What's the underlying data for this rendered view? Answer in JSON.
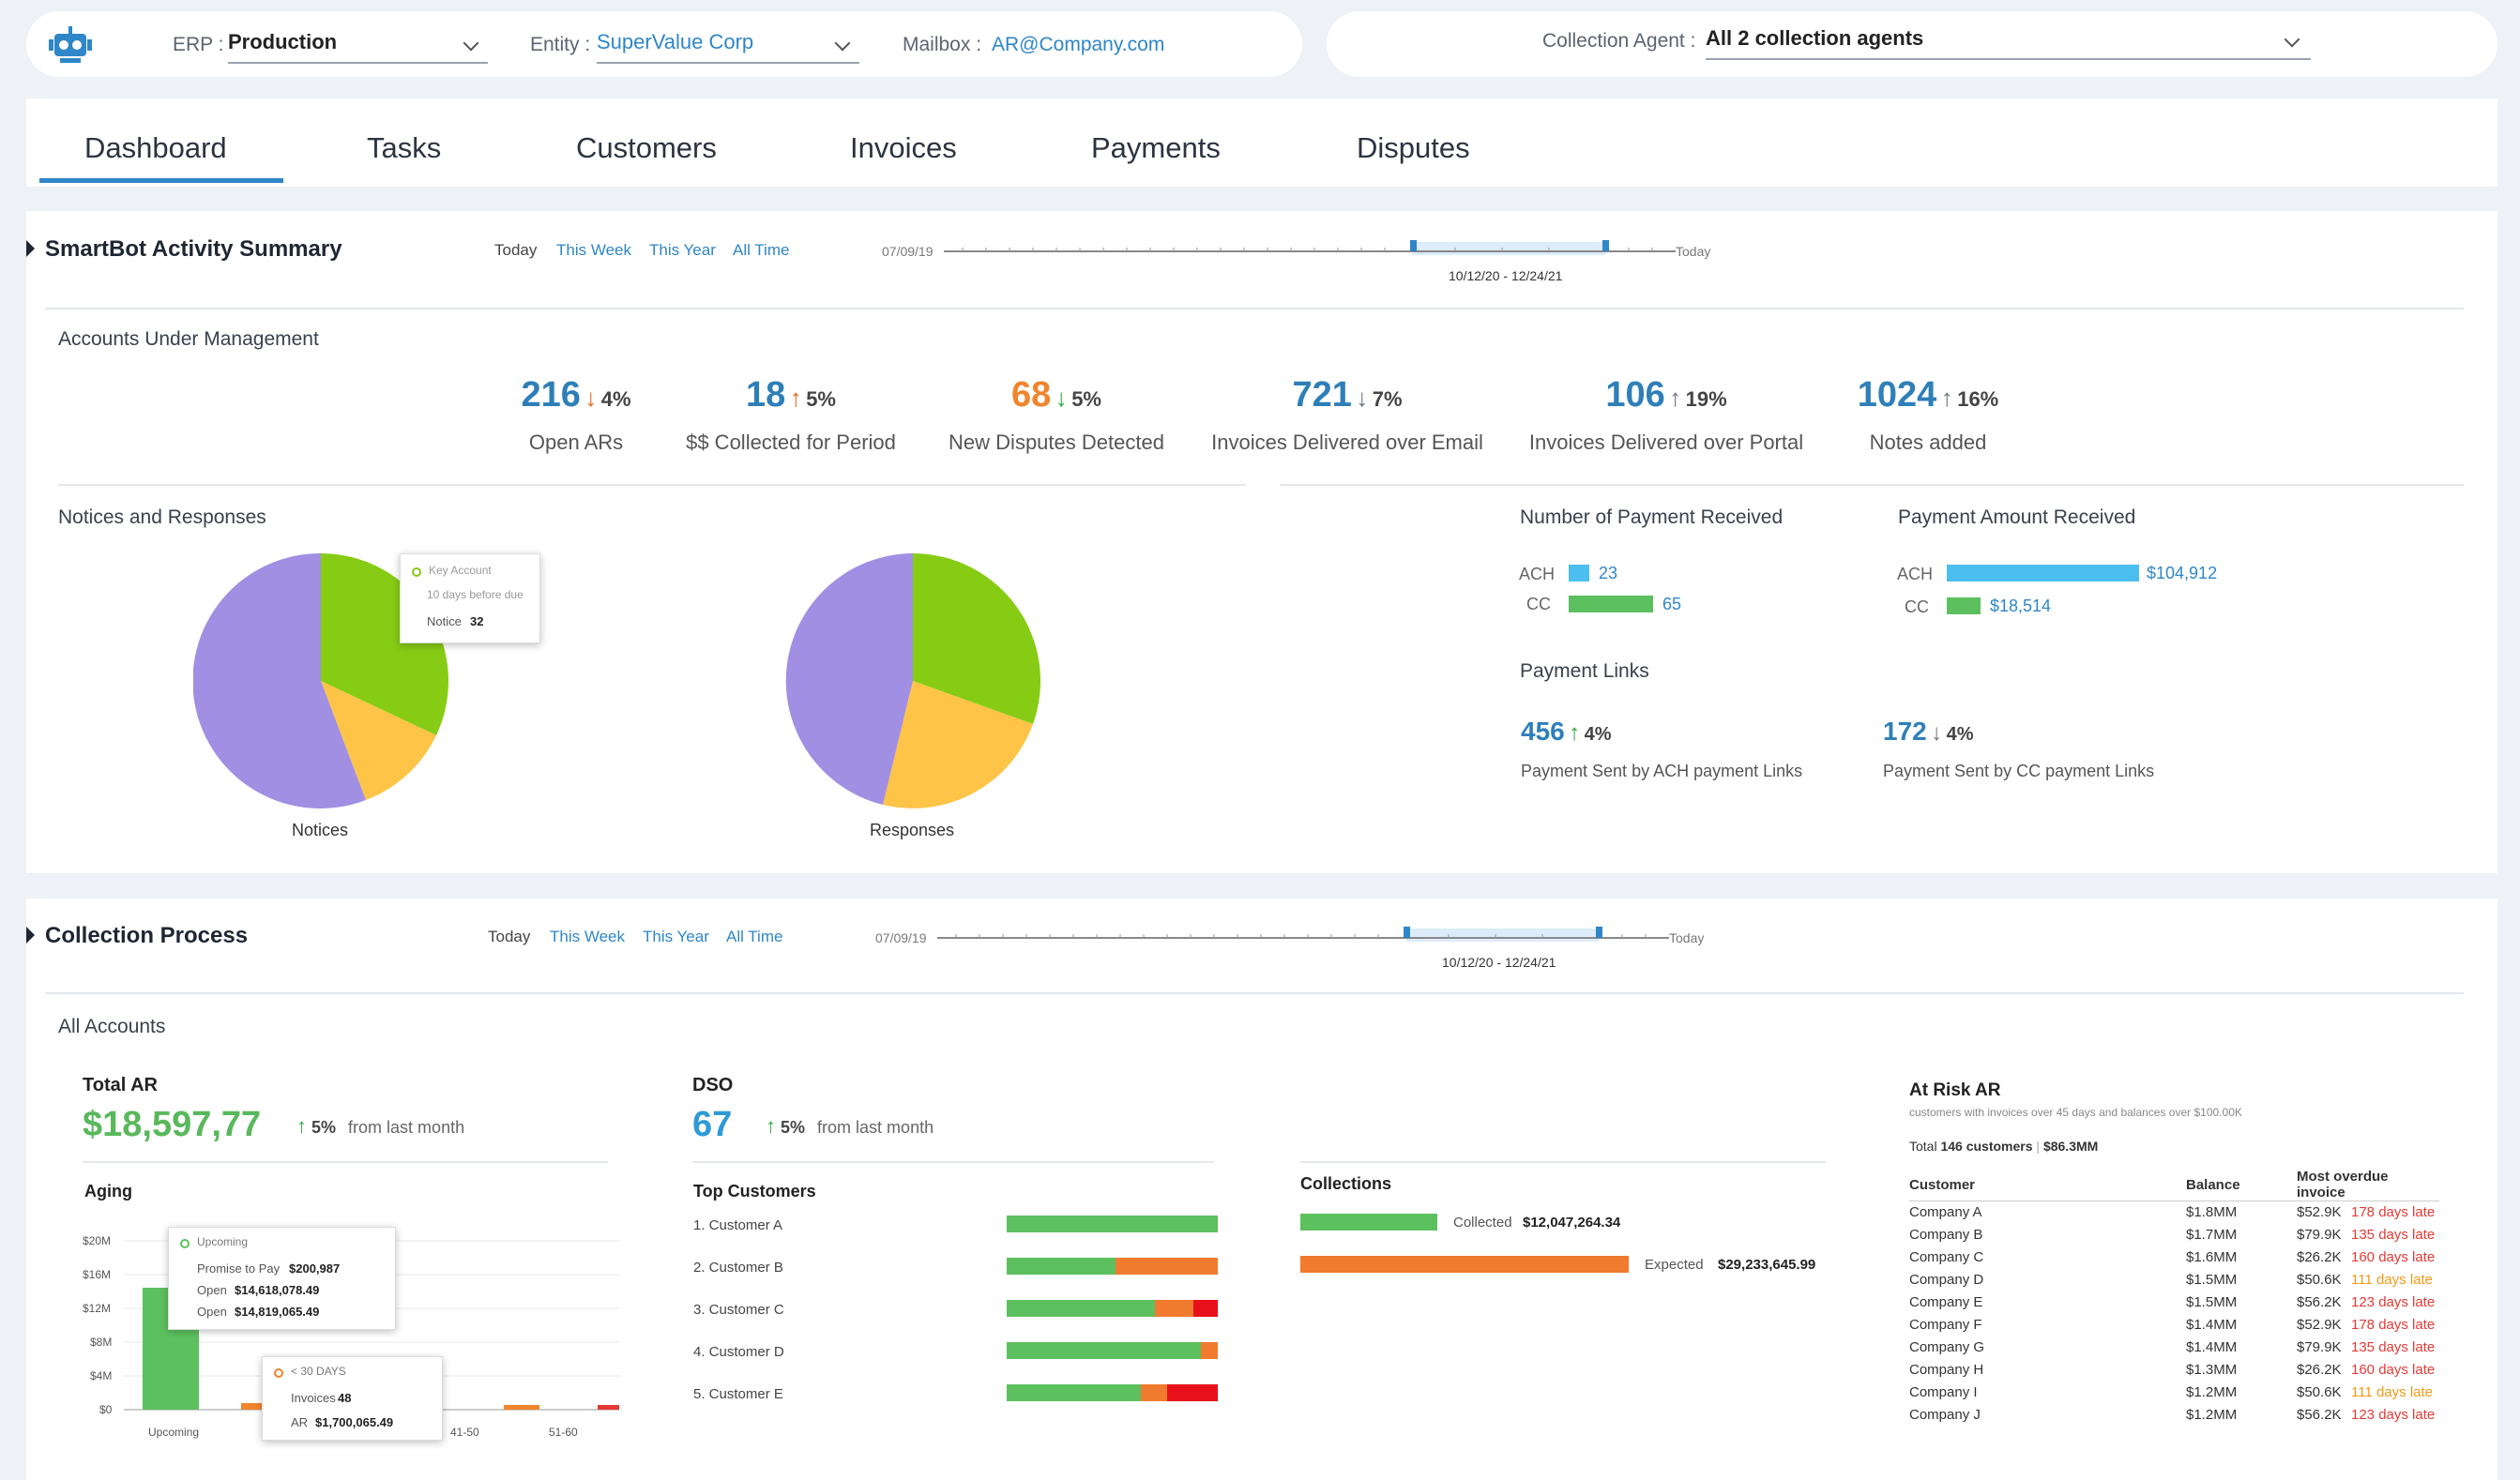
{
  "header": {
    "erp_label": "ERP :",
    "erp_value": "Production",
    "entity_label": "Entity :",
    "entity_value": "SuperValue Corp",
    "mailbox_label": "Mailbox :",
    "mailbox_value": "AR@Company.com",
    "agent_label": "Collection Agent :",
    "agent_value": "All 2 collection agents"
  },
  "tabs": [
    "Dashboard",
    "Tasks",
    "Customers",
    "Invoices",
    "Payments",
    "Disputes"
  ],
  "active_tab": "Dashboard",
  "ranges": [
    "Today",
    "This Week",
    "This Year",
    "All Time"
  ],
  "timeline": {
    "start": "07/09/19",
    "end": "Today",
    "window": "10/12/20 - 12/24/21"
  },
  "smartbot": {
    "title": "SmartBot Activity Summary",
    "accounts_title": "Accounts Under Management",
    "kpis": [
      {
        "value": "216",
        "dir": "down",
        "pct": "4%",
        "label": "Open ARs",
        "color": "#2e7fb8"
      },
      {
        "value": "18",
        "dir": "up",
        "pct": "5%",
        "label": "$$ Collected for Period",
        "color": "#2e7fb8"
      },
      {
        "value": "68",
        "dir": "down",
        "pct": "5%",
        "label": "New Disputes Detected",
        "color": "#f0852d"
      },
      {
        "value": "721",
        "dir": "down",
        "pct": "7%",
        "label": "Invoices Delivered over Email",
        "color": "#2e7fb8"
      },
      {
        "value": "106",
        "dir": "up",
        "pct": "19%",
        "label": "Invoices Delivered over Portal",
        "color": "#2e7fb8"
      },
      {
        "value": "1024",
        "dir": "up",
        "pct": "16%",
        "label": "Notes added",
        "color": "#2e7fb8"
      }
    ],
    "notices_title": "Notices and Responses",
    "pie_labels": [
      "Notices",
      "Responses"
    ],
    "tooltip": {
      "category": "Key Account",
      "detail": "10 days before due",
      "label": "Notice",
      "value": "32"
    },
    "payments_count_title": "Number of Payment Received",
    "payments_amount_title": "Payment Amount Received",
    "payments_count": [
      {
        "label": "ACH",
        "value": "23"
      },
      {
        "label": "CC",
        "value": "65"
      }
    ],
    "payments_amount": [
      {
        "label": "ACH",
        "value": "$104,912"
      },
      {
        "label": "CC",
        "value": "$18,514"
      }
    ],
    "links_title": "Payment Links",
    "links": [
      {
        "value": "456",
        "dir": "up",
        "pct": "4%",
        "label": "Payment Sent by ACH payment Links"
      },
      {
        "value": "172",
        "dir": "down",
        "pct": "4%",
        "label": "Payment Sent by CC payment Links"
      }
    ],
    "colors": {
      "purple": "#a08fe3",
      "green": "#86cc14",
      "yellow": "#fdc447",
      "bar_blue": "#4cbff0",
      "bar_green": "#5dc05f"
    }
  },
  "collection": {
    "title": "Collection Process",
    "all_accounts": "All Accounts",
    "total_ar_label": "Total AR",
    "total_ar_value": "$18,597,77",
    "total_ar_pct": "5%",
    "total_ar_note": "from last month",
    "dso_label": "DSO",
    "dso_value": "67",
    "dso_pct": "5%",
    "dso_note": "from last month",
    "aging_title": "Aging",
    "aging_yticks": [
      "$20M",
      "$16M",
      "$12M",
      "$8M",
      "$4M",
      "$0"
    ],
    "aging_xticks": [
      "Upcoming",
      "41-50",
      "51-60"
    ],
    "tooltip_upcoming": {
      "title": "Upcoming",
      "rows": [
        {
          "label": "Promise to Pay",
          "value": "$200,987"
        },
        {
          "label": "Open",
          "value": "$14,618,078.49"
        },
        {
          "label": "Open",
          "value": "$14,819,065.49"
        }
      ]
    },
    "tooltip_30": {
      "title": "< 30 DAYS",
      "rows": [
        {
          "label": "Invoices",
          "value": "48"
        },
        {
          "label": "AR",
          "value": "$1,700,065.49"
        }
      ]
    },
    "top_customers_title": "Top Customers",
    "top_customers": [
      "1. Customer A",
      "2. Customer B",
      "3. Customer C",
      "4. Customer D",
      "5. Customer E"
    ],
    "collections_title": "Collections",
    "collected_label": "Collected",
    "collected_value": "$12,047,264.34",
    "expected_label": "Expected",
    "expected_value": "$29,233,645.99",
    "at_risk_title": "At Risk AR",
    "at_risk_sub": "customers with invoices over 45 days and balances over $100.00K",
    "at_risk_total_prefix": "Total",
    "at_risk_total_count": "146 customers",
    "at_risk_total_amount": "$86.3MM",
    "at_risk_headers": [
      "Customer",
      "Balance",
      "Most overdue invoice"
    ],
    "at_risk_rows": [
      {
        "customer": "Company A",
        "balance": "$1.8MM",
        "amount": "$52.9K",
        "late": "178 days late"
      },
      {
        "customer": "Company B",
        "balance": "$1.7MM",
        "amount": "$79.9K",
        "late": "135 days late"
      },
      {
        "customer": "Company C",
        "balance": "$1.6MM",
        "amount": "$26.2K",
        "late": "160 days late"
      },
      {
        "customer": "Company D",
        "balance": "$1.5MM",
        "amount": "$50.6K",
        "late": "111 days late"
      },
      {
        "customer": "Company E",
        "balance": "$1.5MM",
        "amount": "$56.2K",
        "late": "123 days late"
      },
      {
        "customer": "Company F",
        "balance": "$1.4MM",
        "amount": "$52.9K",
        "late": "178 days late"
      },
      {
        "customer": "Company G",
        "balance": "$1.4MM",
        "amount": "$79.9K",
        "late": "135 days late"
      },
      {
        "customer": "Company H",
        "balance": "$1.3MM",
        "amount": "$26.2K",
        "late": "160 days late"
      },
      {
        "customer": "Company I",
        "balance": "$1.2MM",
        "amount": "$50.6K",
        "late": "111 days late"
      },
      {
        "customer": "Company J",
        "balance": "$1.2MM",
        "amount": "$56.2K",
        "late": "123 days late"
      }
    ]
  }
}
